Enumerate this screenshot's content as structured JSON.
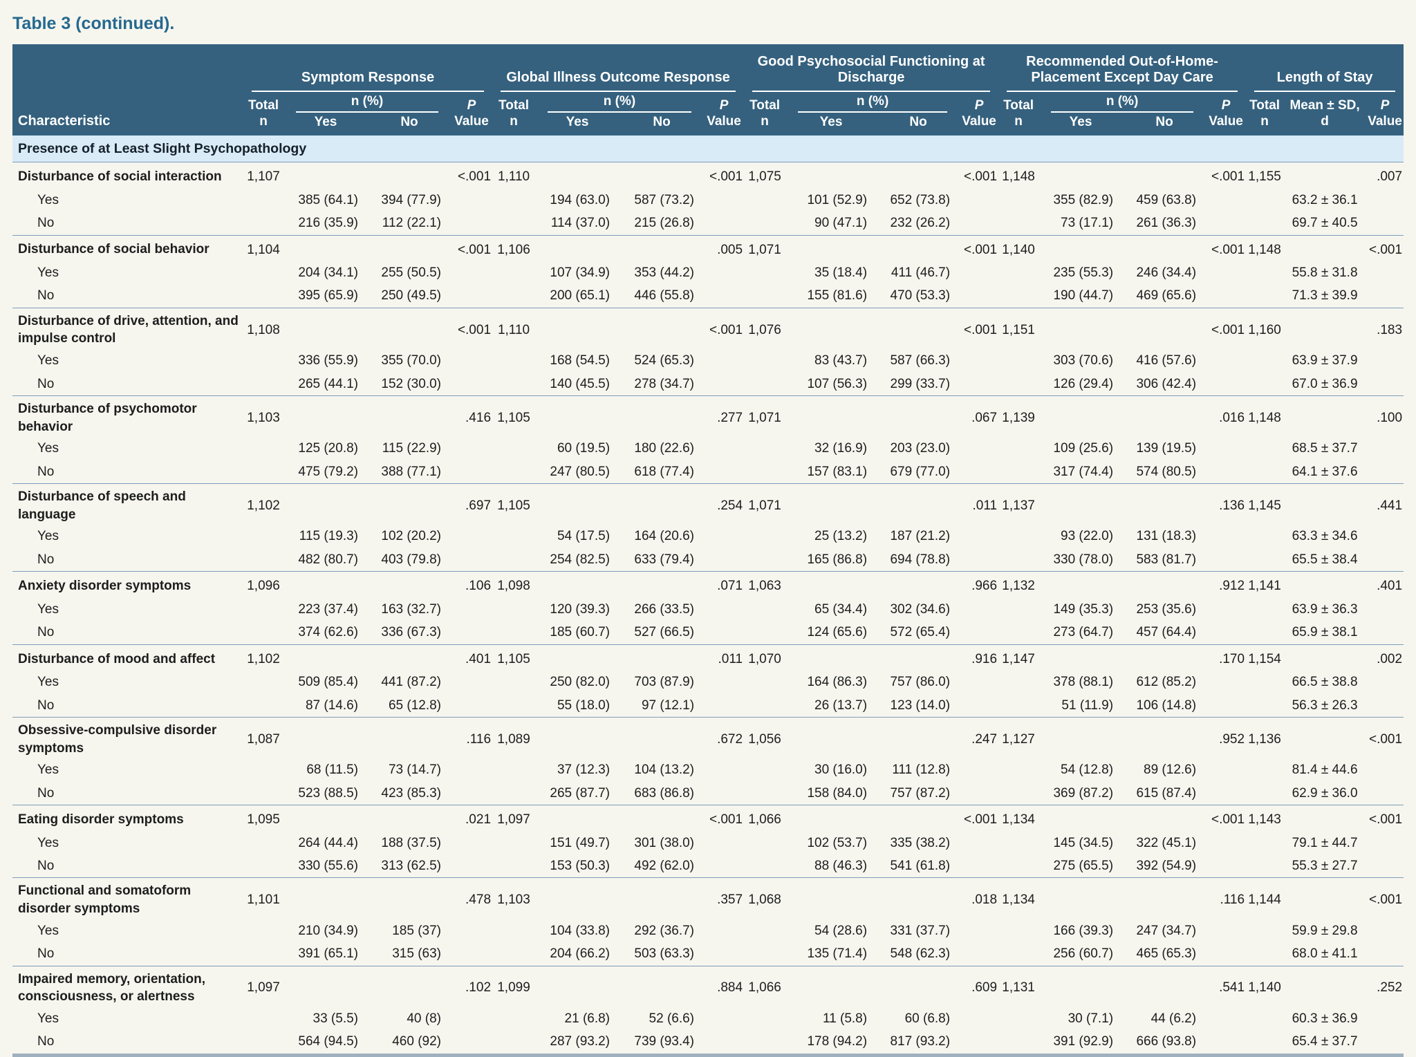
{
  "title": "Table 3 (continued).",
  "table": {
    "char_header": "Characteristic",
    "groups": [
      {
        "label": "Symptom Response"
      },
      {
        "label": "Global Illness Outcome Response"
      },
      {
        "label": "Good Psychosocial Functioning at Discharge"
      },
      {
        "label": "Recommended Out-of-Home-Placement Except Day Care"
      },
      {
        "label": "Length of Stay"
      }
    ],
    "subheads": {
      "total_1": "Total",
      "total_2": "n",
      "npct": "n (%)",
      "yes": "Yes",
      "no": "No",
      "p_1": "P",
      "p_2": "Value",
      "mean_1": "Mean ± SD,",
      "mean_2": "d"
    },
    "section": "Presence of at Least Slight Psychopathology",
    "rows": [
      {
        "name": "Disturbance of social interaction",
        "totals": [
          "1,107",
          "1,110",
          "1,075",
          "1,148",
          "1,155"
        ],
        "p": [
          "<.001",
          "<.001",
          "<.001",
          "<.001",
          ".007"
        ],
        "yes": [
          "385 (64.1)",
          "394 (77.9)",
          "194 (63.0)",
          "587 (73.2)",
          "101 (52.9)",
          "652 (73.8)",
          "355 (82.9)",
          "459 (63.8)",
          "63.2 ± 36.1"
        ],
        "no": [
          "216 (35.9)",
          "112 (22.1)",
          "114 (37.0)",
          "215 (26.8)",
          "90 (47.1)",
          "232 (26.2)",
          "73 (17.1)",
          "261 (36.3)",
          "69.7 ± 40.5"
        ]
      },
      {
        "name": "Disturbance of social behavior",
        "totals": [
          "1,104",
          "1,106",
          "1,071",
          "1,140",
          "1,148"
        ],
        "p": [
          "<.001",
          ".005",
          "<.001",
          "<.001",
          "<.001"
        ],
        "yes": [
          "204 (34.1)",
          "255 (50.5)",
          "107 (34.9)",
          "353 (44.2)",
          "35 (18.4)",
          "411 (46.7)",
          "235 (55.3)",
          "246 (34.4)",
          "55.8 ± 31.8"
        ],
        "no": [
          "395 (65.9)",
          "250 (49.5)",
          "200 (65.1)",
          "446 (55.8)",
          "155 (81.6)",
          "470 (53.3)",
          "190 (44.7)",
          "469 (65.6)",
          "71.3 ± 39.9"
        ]
      },
      {
        "name": "Disturbance of drive, attention, and impulse control",
        "totals": [
          "1,108",
          "1,110",
          "1,076",
          "1,151",
          "1,160"
        ],
        "p": [
          "<.001",
          "<.001",
          "<.001",
          "<.001",
          ".183"
        ],
        "yes": [
          "336 (55.9)",
          "355 (70.0)",
          "168 (54.5)",
          "524 (65.3)",
          "83 (43.7)",
          "587 (66.3)",
          "303 (70.6)",
          "416 (57.6)",
          "63.9 ± 37.9"
        ],
        "no": [
          "265 (44.1)",
          "152 (30.0)",
          "140 (45.5)",
          "278 (34.7)",
          "107 (56.3)",
          "299 (33.7)",
          "126 (29.4)",
          "306 (42.4)",
          "67.0 ± 36.9"
        ]
      },
      {
        "name": "Disturbance of psychomotor behavior",
        "totals": [
          "1,103",
          "1,105",
          "1,071",
          "1,139",
          "1,148"
        ],
        "p": [
          ".416",
          ".277",
          ".067",
          ".016",
          ".100"
        ],
        "yes": [
          "125 (20.8)",
          "115 (22.9)",
          "60 (19.5)",
          "180 (22.6)",
          "32 (16.9)",
          "203 (23.0)",
          "109 (25.6)",
          "139 (19.5)",
          "68.5 ± 37.7"
        ],
        "no": [
          "475 (79.2)",
          "388 (77.1)",
          "247 (80.5)",
          "618 (77.4)",
          "157 (83.1)",
          "679 (77.0)",
          "317 (74.4)",
          "574 (80.5)",
          "64.1 ± 37.6"
        ]
      },
      {
        "name": "Disturbance of speech and language",
        "totals": [
          "1,102",
          "1,105",
          "1,071",
          "1,137",
          "1,145"
        ],
        "p": [
          ".697",
          ".254",
          ".011",
          ".136",
          ".441"
        ],
        "yes": [
          "115 (19.3)",
          "102 (20.2)",
          "54 (17.5)",
          "164 (20.6)",
          "25 (13.2)",
          "187 (21.2)",
          "93 (22.0)",
          "131 (18.3)",
          "63.3 ± 34.6"
        ],
        "no": [
          "482 (80.7)",
          "403 (79.8)",
          "254 (82.5)",
          "633 (79.4)",
          "165 (86.8)",
          "694 (78.8)",
          "330 (78.0)",
          "583 (81.7)",
          "65.5 ± 38.4"
        ]
      },
      {
        "name": "Anxiety disorder symptoms",
        "totals": [
          "1,096",
          "1,098",
          "1,063",
          "1,132",
          "1,141"
        ],
        "p": [
          ".106",
          ".071",
          ".966",
          ".912",
          ".401"
        ],
        "yes": [
          "223 (37.4)",
          "163 (32.7)",
          "120 (39.3)",
          "266 (33.5)",
          "65 (34.4)",
          "302 (34.6)",
          "149 (35.3)",
          "253 (35.6)",
          "63.9 ± 36.3"
        ],
        "no": [
          "374 (62.6)",
          "336 (67.3)",
          "185 (60.7)",
          "527 (66.5)",
          "124 (65.6)",
          "572 (65.4)",
          "273 (64.7)",
          "457 (64.4)",
          "65.9 ± 38.1"
        ]
      },
      {
        "name": "Disturbance of mood and affect",
        "totals": [
          "1,102",
          "1,105",
          "1,070",
          "1,147",
          "1,154"
        ],
        "p": [
          ".401",
          ".011",
          ".916",
          ".170",
          ".002"
        ],
        "yes": [
          "509 (85.4)",
          "441 (87.2)",
          "250 (82.0)",
          "703 (87.9)",
          "164 (86.3)",
          "757 (86.0)",
          "378 (88.1)",
          "612 (85.2)",
          "66.5 ± 38.8"
        ],
        "no": [
          "87 (14.6)",
          "65 (12.8)",
          "55 (18.0)",
          "97 (12.1)",
          "26 (13.7)",
          "123 (14.0)",
          "51 (11.9)",
          "106 (14.8)",
          "56.3 ± 26.3"
        ]
      },
      {
        "name": "Obsessive-compulsive disorder symptoms",
        "totals": [
          "1,087",
          "1,089",
          "1,056",
          "1,127",
          "1,136"
        ],
        "p": [
          ".116",
          ".672",
          ".247",
          ".952",
          "<.001"
        ],
        "yes": [
          "68 (11.5)",
          "73 (14.7)",
          "37 (12.3)",
          "104 (13.2)",
          "30 (16.0)",
          "111 (12.8)",
          "54 (12.8)",
          "89 (12.6)",
          "81.4 ± 44.6"
        ],
        "no": [
          "523 (88.5)",
          "423 (85.3)",
          "265 (87.7)",
          "683 (86.8)",
          "158 (84.0)",
          "757 (87.2)",
          "369 (87.2)",
          "615 (87.4)",
          "62.9 ± 36.0"
        ]
      },
      {
        "name": "Eating disorder symptoms",
        "totals": [
          "1,095",
          "1,097",
          "1,066",
          "1,134",
          "1,143"
        ],
        "p": [
          ".021",
          "<.001",
          "<.001",
          "<.001",
          "<.001"
        ],
        "yes": [
          "264 (44.4)",
          "188 (37.5)",
          "151 (49.7)",
          "301 (38.0)",
          "102 (53.7)",
          "335 (38.2)",
          "145 (34.5)",
          "322 (45.1)",
          "79.1 ± 44.7"
        ],
        "no": [
          "330 (55.6)",
          "313 (62.5)",
          "153 (50.3)",
          "492 (62.0)",
          "88 (46.3)",
          "541 (61.8)",
          "275 (65.5)",
          "392 (54.9)",
          "55.3 ± 27.7"
        ]
      },
      {
        "name": "Functional and somatoform disorder symptoms",
        "totals": [
          "1,101",
          "1,103",
          "1,068",
          "1,134",
          "1,144"
        ],
        "p": [
          ".478",
          ".357",
          ".018",
          ".116",
          "<.001"
        ],
        "yes": [
          "210 (34.9)",
          "185 (37)",
          "104 (33.8)",
          "292 (36.7)",
          "54 (28.6)",
          "331 (37.7)",
          "166 (39.3)",
          "247 (34.7)",
          "59.9 ± 29.8"
        ],
        "no": [
          "391 (65.1)",
          "315 (63)",
          "204 (66.2)",
          "503 (63.3)",
          "135 (71.4)",
          "548 (62.3)",
          "256 (60.7)",
          "465 (65.3)",
          "68.0 ± 41.1"
        ]
      },
      {
        "name": "Impaired memory, orientation, consciousness, or alertness",
        "totals": [
          "1,097",
          "1,099",
          "1,066",
          "1,131",
          "1,140"
        ],
        "p": [
          ".102",
          ".884",
          ".609",
          ".541",
          ".252"
        ],
        "yes": [
          "33 (5.5)",
          "40 (8)",
          "21 (6.8)",
          "52 (6.6)",
          "11 (5.8)",
          "60 (6.8)",
          "30 (7.1)",
          "44 (6.2)",
          "60.3 ± 36.9"
        ],
        "no": [
          "564 (94.5)",
          "460 (92)",
          "287 (93.2)",
          "739 (93.4)",
          "178 (94.2)",
          "817 (93.2)",
          "391 (92.9)",
          "666 (93.8)",
          "65.4 ± 37.7"
        ]
      }
    ]
  }
}
